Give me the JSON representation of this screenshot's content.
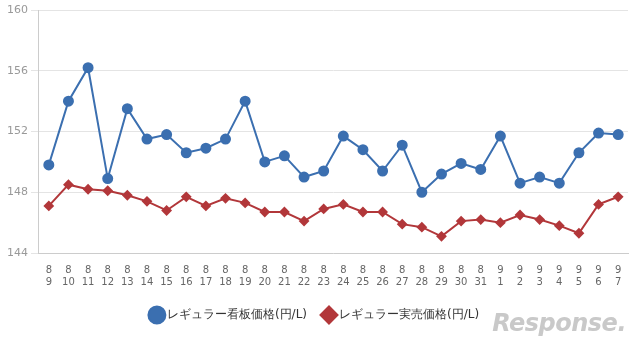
{
  "chart_data": {
    "type": "line",
    "categories": [
      [
        "8",
        "9"
      ],
      [
        "8",
        "10"
      ],
      [
        "8",
        "11"
      ],
      [
        "8",
        "12"
      ],
      [
        "8",
        "13"
      ],
      [
        "8",
        "14"
      ],
      [
        "8",
        "15"
      ],
      [
        "8",
        "16"
      ],
      [
        "8",
        "17"
      ],
      [
        "8",
        "18"
      ],
      [
        "8",
        "19"
      ],
      [
        "8",
        "20"
      ],
      [
        "8",
        "21"
      ],
      [
        "8",
        "22"
      ],
      [
        "8",
        "23"
      ],
      [
        "8",
        "24"
      ],
      [
        "8",
        "25"
      ],
      [
        "8",
        "26"
      ],
      [
        "8",
        "27"
      ],
      [
        "8",
        "28"
      ],
      [
        "8",
        "29"
      ],
      [
        "8",
        "30"
      ],
      [
        "8",
        "31"
      ],
      [
        "9",
        "1"
      ],
      [
        "9",
        "2"
      ],
      [
        "9",
        "3"
      ],
      [
        "9",
        "4"
      ],
      [
        "9",
        "5"
      ],
      [
        "9",
        "6"
      ],
      [
        "9",
        "7"
      ]
    ],
    "series": [
      {
        "name": "レギュラー看板価格(円/L)",
        "color": "#3b6fb0",
        "marker": "circle",
        "values": [
          149.8,
          154.0,
          156.2,
          148.9,
          153.5,
          151.5,
          151.8,
          150.6,
          150.9,
          151.5,
          154.0,
          150.0,
          150.4,
          149.0,
          149.4,
          151.7,
          150.8,
          149.4,
          151.1,
          148.0,
          149.2,
          149.9,
          149.5,
          151.7,
          148.6,
          149.0,
          148.6,
          150.6,
          151.9,
          151.8
        ]
      },
      {
        "name": "レギュラー実売価格(円/L)",
        "color": "#b2373a",
        "marker": "diamond",
        "values": [
          147.1,
          148.5,
          148.2,
          148.1,
          147.8,
          147.4,
          146.8,
          147.7,
          147.1,
          147.6,
          147.3,
          146.7,
          146.7,
          146.1,
          146.9,
          147.2,
          146.7,
          146.7,
          145.9,
          145.7,
          145.1,
          146.1,
          146.2,
          146.0,
          146.5,
          146.2,
          145.8,
          145.3,
          147.2,
          147.7
        ]
      }
    ],
    "ylim": [
      144,
      160
    ],
    "yticks": [
      144,
      148,
      152,
      156,
      160
    ],
    "grid": true,
    "legend": "bottom",
    "annotations": [
      "Response."
    ]
  }
}
